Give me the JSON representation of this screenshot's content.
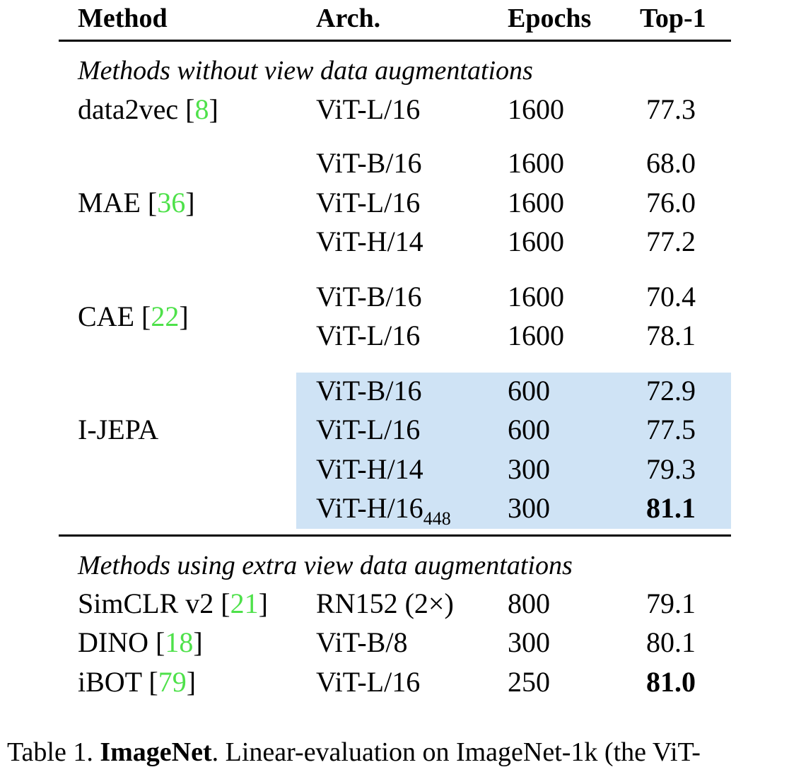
{
  "table": {
    "headers": {
      "method": "Method",
      "arch": "Arch.",
      "epochs": "Epochs",
      "top1": "Top-1"
    },
    "section1_title": "Methods without view data augmentations",
    "section2_title": "Methods using extra view data augmentations",
    "groups": [
      {
        "method": "data2vec",
        "ref": "8",
        "rows": [
          {
            "arch": "ViT-L/16",
            "epochs": "1600",
            "top1": "77.3"
          }
        ]
      },
      {
        "method": "MAE",
        "ref": "36",
        "rows": [
          {
            "arch": "ViT-B/16",
            "epochs": "1600",
            "top1": "68.0"
          },
          {
            "arch": "ViT-L/16",
            "epochs": "1600",
            "top1": "76.0"
          },
          {
            "arch": "ViT-H/14",
            "epochs": "1600",
            "top1": "77.2"
          }
        ]
      },
      {
        "method": "CAE",
        "ref": "22",
        "rows": [
          {
            "arch": "ViT-B/16",
            "epochs": "1600",
            "top1": "70.4"
          },
          {
            "arch": "ViT-L/16",
            "epochs": "1600",
            "top1": "78.1"
          }
        ]
      },
      {
        "method": "I-JEPA",
        "ref": "",
        "highlight_color": "#cfe3f5",
        "rows": [
          {
            "arch": "ViT-B/16",
            "epochs": "600",
            "top1": "72.9"
          },
          {
            "arch": "ViT-L/16",
            "epochs": "600",
            "top1": "77.5"
          },
          {
            "arch": "ViT-H/14",
            "epochs": "300",
            "top1": "79.3"
          },
          {
            "arch": "ViT-H/16",
            "arch_sub": "448",
            "epochs": "300",
            "top1": "81.1",
            "top1_bold": true
          }
        ]
      },
      {
        "method": "SimCLR v2",
        "ref": "21",
        "rows": [
          {
            "arch": "RN152 (2×)",
            "epochs": "800",
            "top1": "79.1"
          }
        ]
      },
      {
        "method": "DINO",
        "ref": "18",
        "rows": [
          {
            "arch": "ViT-B/8",
            "epochs": "300",
            "top1": "80.1"
          }
        ]
      },
      {
        "method": "iBOT",
        "ref": "79",
        "rows": [
          {
            "arch": "ViT-L/16",
            "epochs": "250",
            "top1": "81.0",
            "top1_bold": true
          }
        ]
      }
    ],
    "ref_color": "#4ee14a"
  },
  "caption": {
    "label": "Table 1.",
    "title": "ImageNet",
    "text": ". Linear-evaluation on ImageNet-1k (the ViT-"
  }
}
